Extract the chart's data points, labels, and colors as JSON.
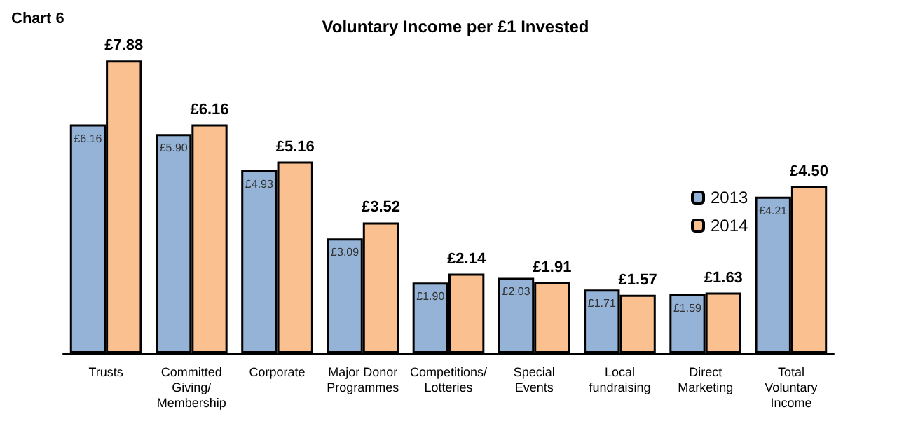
{
  "chart_data": {
    "type": "bar",
    "title": "Voluntary Income per £1 Invested",
    "annotations": [
      "Chart 6"
    ],
    "categories": [
      "Trusts",
      "Committed\nGiving/\nMembership",
      "Corporate",
      "Major Donor\nProgrammes",
      "Competitions/\nLotteries",
      "Special\nEvents",
      "Local\nfundraising",
      "Direct\nMarketing",
      "Total\nVoluntary\nIncome"
    ],
    "series": [
      {
        "name": "2013",
        "color": "#95b3d7",
        "values": [
          6.16,
          5.9,
          4.93,
          3.09,
          1.9,
          2.03,
          1.71,
          1.59,
          4.21
        ],
        "value_labels": [
          "£6.16",
          "£5.90",
          "£4.93",
          "£3.09",
          "£1.90",
          "£2.03",
          "£1.71",
          "£1.59",
          "£4.21"
        ]
      },
      {
        "name": "2014",
        "color": "#fac090",
        "values": [
          7.88,
          6.16,
          5.16,
          3.52,
          2.14,
          1.91,
          1.57,
          1.63,
          4.5
        ],
        "value_labels": [
          "£7.88",
          "£6.16",
          "£5.16",
          "£3.52",
          "£2.14",
          "£1.91",
          "£1.57",
          "£1.63",
          "£4.50"
        ]
      }
    ],
    "legend": "right"
  }
}
